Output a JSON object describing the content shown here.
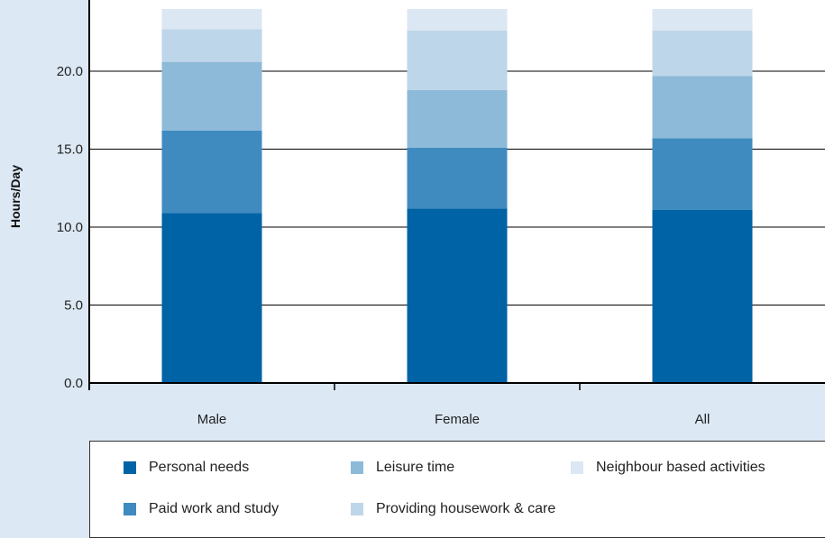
{
  "chart_data": {
    "type": "bar",
    "stacked": true,
    "categories": [
      "Male",
      "Female",
      "All"
    ],
    "ylabel": "Hours/Day",
    "ylim": [
      0,
      24
    ],
    "yticks": [
      "0.0",
      "5.0",
      "10.0",
      "15.0",
      "20.0"
    ],
    "grid": true,
    "legend_position": "bottom",
    "series": [
      {
        "name": "Personal needs",
        "color": "#0063a6",
        "values": [
          10.9,
          11.2,
          11.1
        ]
      },
      {
        "name": "Paid work and study",
        "color": "#3f8bc0",
        "values": [
          5.3,
          3.9,
          4.6
        ]
      },
      {
        "name": "Leisure time",
        "color": "#8ebad9",
        "values": [
          4.4,
          3.7,
          4.0
        ]
      },
      {
        "name": "Providing housework & care",
        "color": "#bed6ea",
        "values": [
          2.1,
          3.8,
          2.9
        ]
      },
      {
        "name": "Neighbour based activities",
        "color": "#dbe7f2",
        "values": [
          1.3,
          1.4,
          1.4
        ]
      }
    ]
  }
}
